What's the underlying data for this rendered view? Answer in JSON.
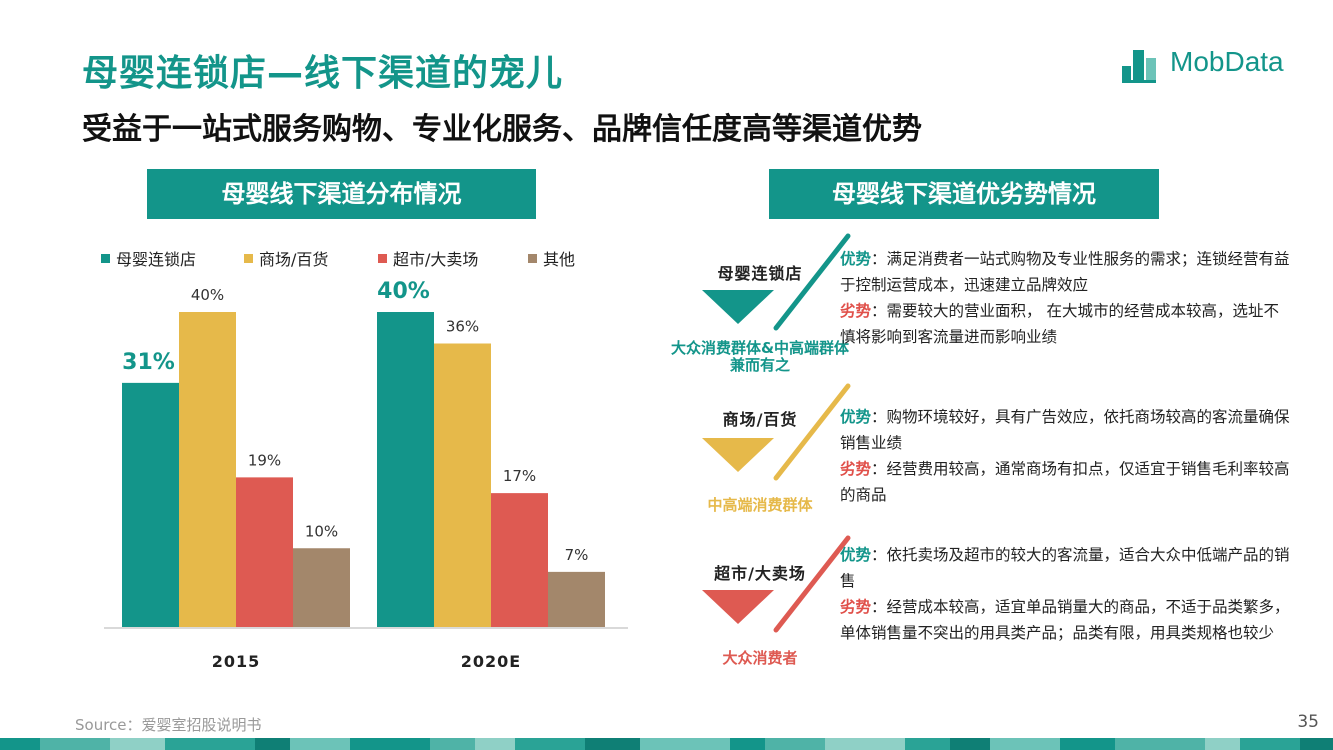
{
  "header": {
    "title": "母婴连锁店—线下渠道的宠儿",
    "subtitle": "受益于一站式服务购物、专业化服务、品牌信任度高等渠道优势"
  },
  "logo": {
    "text": "MobData",
    "icon": "building-blocks-icon",
    "color": "#13958a"
  },
  "left_panel": {
    "title": "母婴线下渠道分布情况"
  },
  "right_panel": {
    "title": "母婴线下渠道优劣势情况"
  },
  "chart_data": {
    "type": "bar",
    "categories": [
      "2015",
      "2020E"
    ],
    "series": [
      {
        "name": "母婴连锁店",
        "values": [
          31,
          40
        ],
        "color": "#13958a",
        "labels": [
          "31%",
          "40%"
        ],
        "highlight": true
      },
      {
        "name": "商场/百货",
        "values": [
          40,
          36
        ],
        "color": "#e6b94a",
        "labels": [
          "40%",
          "36%"
        ],
        "highlight": false
      },
      {
        "name": "超市/大卖场",
        "values": [
          19,
          17
        ],
        "color": "#de5a52",
        "labels": [
          "19%",
          "17%"
        ],
        "highlight": false
      },
      {
        "name": "其他",
        "values": [
          10,
          7
        ],
        "color": "#a3876b",
        "labels": [
          "10%",
          "7%"
        ],
        "highlight": false
      }
    ],
    "ylim": [
      0,
      40
    ],
    "legend": "top",
    "grid": false
  },
  "channels": [
    {
      "name": "母婴连锁店",
      "audience": "大众消费群体&中高端群体兼而有之",
      "color": "#13958a",
      "adv_label": "优势",
      "adv_text": "：满足消费者一站式购物及专业性服务的需求；连锁经营有益于控制运营成本，迅速建立品牌效应",
      "dis_label": "劣势",
      "dis_text": "：需要较大的营业面积， 在大城市的经营成本较高，选址不慎将影响到客流量进而影响业绩"
    },
    {
      "name": "商场/百货",
      "audience": "中高端消费群体",
      "color": "#e6b94a",
      "adv_label": "优势",
      "adv_text": "：购物环境较好，具有广告效应，依托商场较高的客流量确保销售业绩",
      "dis_label": "劣势",
      "dis_text": "：经营费用较高，通常商场有扣点，仅适宜于销售毛利率较高的商品"
    },
    {
      "name": "超市/大卖场",
      "audience": "大众消费者",
      "color": "#de5a52",
      "adv_label": "优势",
      "adv_text": "：依托卖场及超市的较大的客流量，适合大众中低端产品的销售",
      "dis_label": "劣势",
      "dis_text": "：经营成本较高，适宜单品销量大的商品，不适于品类繁多，单体销售量不突出的用具类产品；品类有限，用具类规格也较少"
    }
  ],
  "footer": {
    "source": "Source：爱婴室招股说明书",
    "page": "35"
  }
}
